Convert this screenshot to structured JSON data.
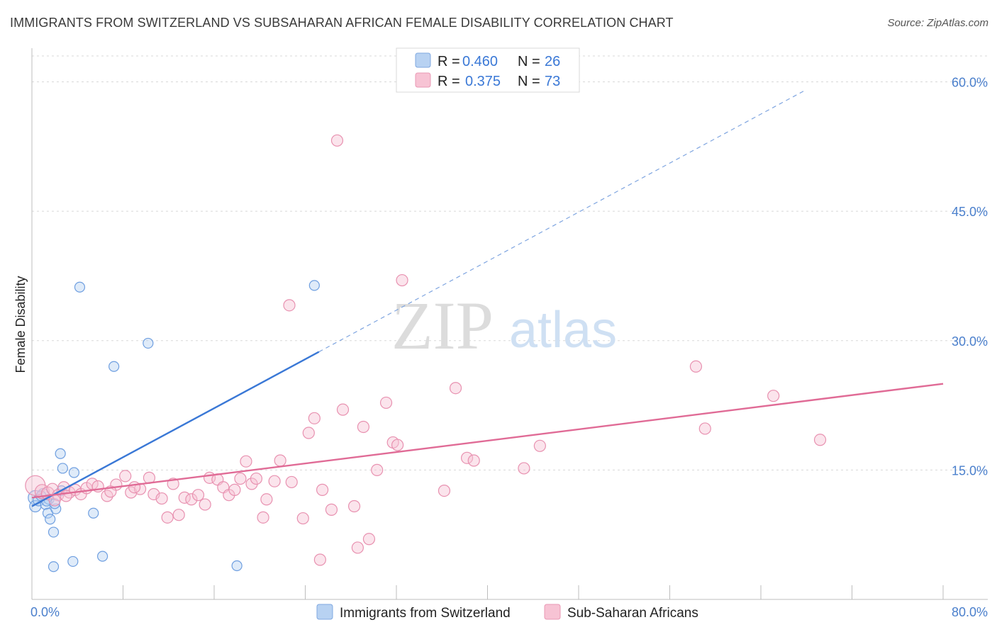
{
  "title": "IMMIGRANTS FROM SWITZERLAND VS SUBSAHARAN AFRICAN FEMALE DISABILITY CORRELATION CHART",
  "source": "Source: ZipAtlas.com",
  "watermark": {
    "zip": "ZIP",
    "atlas": "atlas"
  },
  "colors": {
    "blue": "#3a78d6",
    "blue_fill": "#b8d2f2",
    "pink": "#e06b96",
    "pink_fill": "#f7c3d4",
    "grid": "#d8d8d8",
    "tick_label": "#4a7fcc"
  },
  "legend_box": {
    "rows": [
      {
        "r_label": "R =",
        "r_value": "0.460",
        "n_label": "N =",
        "n_value": "26"
      },
      {
        "r_label": "R =",
        "r_value": "0.375",
        "n_label": "N =",
        "n_value": "73"
      }
    ]
  },
  "chart_data": {
    "type": "scatter",
    "xlabel": "",
    "ylabel": "Female Disability",
    "xlim": [
      0,
      80
    ],
    "ylim": [
      0,
      63
    ],
    "x_tick_labels": [
      "0.0%",
      "80.0%"
    ],
    "y_ticks": [
      15,
      30,
      45,
      60
    ],
    "y_tick_labels": [
      "15.0%",
      "30.0%",
      "45.0%",
      "60.0%"
    ],
    "grid": true,
    "legend_placement": "bottom",
    "series": [
      {
        "name": "Immigrants from Switzerland",
        "trend": {
          "x0": 0,
          "y0": 10.8,
          "x1": 25.2,
          "y1": 28.7,
          "dash_to_x": 68
        },
        "points": [
          [
            0.3,
            11.8,
            10
          ],
          [
            0.3,
            10.8,
            8
          ],
          [
            0.6,
            11.5,
            8
          ],
          [
            1.0,
            12.2,
            8
          ],
          [
            1.2,
            11.0,
            7
          ],
          [
            1.5,
            11.6,
            7
          ],
          [
            1.4,
            10.0,
            7
          ],
          [
            1.6,
            9.3,
            7
          ],
          [
            1.9,
            7.8,
            7
          ],
          [
            2.1,
            10.5,
            7
          ],
          [
            2.5,
            16.9,
            7
          ],
          [
            2.7,
            15.2,
            7
          ],
          [
            2.6,
            12.6,
            7
          ],
          [
            3.7,
            14.7,
            7
          ],
          [
            4.2,
            36.2,
            7
          ],
          [
            5.4,
            10.0,
            7
          ],
          [
            7.2,
            27.0,
            7
          ],
          [
            10.2,
            29.7,
            7
          ],
          [
            1.9,
            3.8,
            7
          ],
          [
            3.6,
            4.4,
            7
          ],
          [
            6.2,
            5.0,
            7
          ],
          [
            18.0,
            3.9,
            7
          ],
          [
            24.8,
            36.4,
            7
          ],
          [
            1.3,
            11.4,
            7
          ],
          [
            0.8,
            12.0,
            7
          ],
          [
            2.0,
            11.1,
            7
          ]
        ]
      },
      {
        "name": "Sub-Saharan Africans",
        "trend": {
          "x0": 0,
          "y0": 11.8,
          "x1": 80,
          "y1": 25.0
        },
        "points": [
          [
            0.3,
            13.2,
            14
          ],
          [
            0.9,
            12.5,
            10
          ],
          [
            1.4,
            12.3,
            9
          ],
          [
            1.8,
            12.8,
            8
          ],
          [
            2.3,
            12.1,
            8
          ],
          [
            2.8,
            13.0,
            8
          ],
          [
            3.3,
            12.4,
            8
          ],
          [
            3.8,
            12.7,
            8
          ],
          [
            4.3,
            12.2,
            8
          ],
          [
            4.8,
            12.9,
            8
          ],
          [
            5.3,
            13.4,
            8
          ],
          [
            5.8,
            13.1,
            8
          ],
          [
            6.6,
            12.0,
            8
          ],
          [
            7.4,
            13.3,
            8
          ],
          [
            8.2,
            14.3,
            8
          ],
          [
            8.7,
            12.4,
            8
          ],
          [
            9.5,
            12.8,
            8
          ],
          [
            10.3,
            14.1,
            8
          ],
          [
            10.7,
            12.2,
            8
          ],
          [
            11.4,
            11.7,
            8
          ],
          [
            11.9,
            9.5,
            8
          ],
          [
            12.4,
            13.4,
            8
          ],
          [
            12.9,
            9.8,
            8
          ],
          [
            13.4,
            11.8,
            8
          ],
          [
            14.0,
            11.6,
            8
          ],
          [
            14.6,
            12.1,
            8
          ],
          [
            15.2,
            11.0,
            8
          ],
          [
            15.6,
            14.1,
            8
          ],
          [
            16.3,
            13.9,
            8
          ],
          [
            16.8,
            13.0,
            8
          ],
          [
            17.3,
            12.1,
            8
          ],
          [
            17.8,
            12.7,
            8
          ],
          [
            18.3,
            14.0,
            8
          ],
          [
            18.8,
            16.0,
            8
          ],
          [
            19.3,
            13.4,
            8
          ],
          [
            19.7,
            14.0,
            8
          ],
          [
            20.3,
            9.5,
            8
          ],
          [
            20.6,
            11.6,
            8
          ],
          [
            21.3,
            13.7,
            8
          ],
          [
            21.8,
            16.1,
            8
          ],
          [
            22.8,
            13.6,
            8
          ],
          [
            23.8,
            9.4,
            8
          ],
          [
            24.3,
            19.3,
            8
          ],
          [
            24.8,
            21.0,
            8
          ],
          [
            25.3,
            4.6,
            8
          ],
          [
            25.5,
            12.7,
            8
          ],
          [
            26.3,
            10.4,
            8
          ],
          [
            26.8,
            53.2,
            8
          ],
          [
            27.3,
            22.0,
            8
          ],
          [
            28.3,
            10.8,
            8
          ],
          [
            28.6,
            6.0,
            8
          ],
          [
            29.1,
            20.0,
            8
          ],
          [
            29.6,
            7.0,
            8
          ],
          [
            30.3,
            15.0,
            8
          ],
          [
            31.1,
            22.8,
            8
          ],
          [
            31.7,
            18.2,
            8
          ],
          [
            32.1,
            17.9,
            8
          ],
          [
            32.5,
            37.0,
            8
          ],
          [
            36.2,
            12.6,
            8
          ],
          [
            37.2,
            24.5,
            8
          ],
          [
            38.2,
            16.4,
            8
          ],
          [
            38.8,
            16.1,
            8
          ],
          [
            43.2,
            15.2,
            8
          ],
          [
            44.6,
            17.8,
            8
          ],
          [
            58.3,
            27.0,
            8
          ],
          [
            59.1,
            19.8,
            8
          ],
          [
            65.1,
            23.6,
            8
          ],
          [
            69.2,
            18.5,
            8
          ],
          [
            22.6,
            34.1,
            8
          ],
          [
            2.0,
            11.5,
            8
          ],
          [
            6.9,
            12.5,
            8
          ],
          [
            9.0,
            13.0,
            8
          ],
          [
            3.0,
            12.0,
            8
          ]
        ]
      }
    ]
  },
  "bottom_legend": [
    {
      "label": "Immigrants from Switzerland"
    },
    {
      "label": "Sub-Saharan Africans"
    }
  ]
}
